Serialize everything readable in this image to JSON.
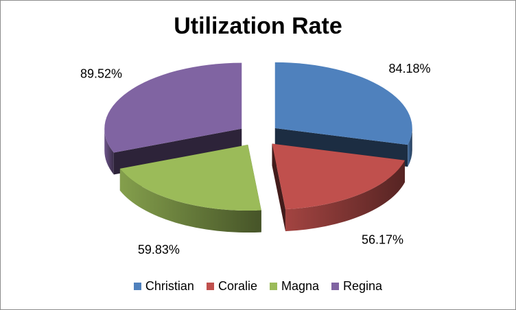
{
  "chart_data": {
    "type": "pie",
    "title": "Utilization Rate",
    "categories": [
      "Christian",
      "Coralie",
      "Magna",
      "Regina"
    ],
    "values": [
      84.18,
      56.17,
      59.83,
      89.52
    ],
    "labels": [
      "84.18%",
      "56.17%",
      "59.83%",
      "89.52%"
    ],
    "exploded": true,
    "three_d": true,
    "legend": "bottom",
    "colors": [
      "#4f81bd",
      "#c0504d",
      "#9bbb59",
      "#8064a2"
    ]
  }
}
